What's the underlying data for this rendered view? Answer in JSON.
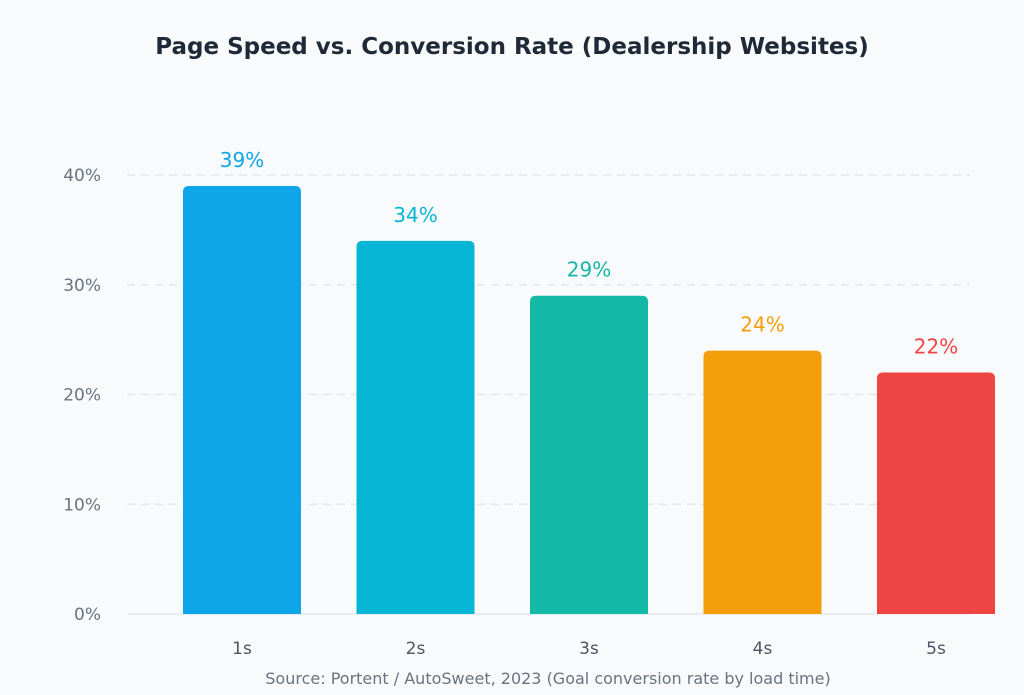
{
  "chart_data": {
    "type": "bar",
    "title": "Page Speed vs. Conversion Rate (Dealership Websites)",
    "xlabel": "",
    "ylabel": "",
    "categories": [
      "1s",
      "2s",
      "3s",
      "4s",
      "5s"
    ],
    "values": [
      39,
      34,
      29,
      24,
      22
    ],
    "data_labels": [
      "39%",
      "34%",
      "29%",
      "24%",
      "22%"
    ],
    "colors": [
      "#0ea5e9",
      "#06b6d4",
      "#14b8a6",
      "#f59e0b",
      "#ef4444"
    ],
    "ylim": [
      0,
      40
    ],
    "yticks": [
      0,
      10,
      20,
      30,
      40
    ],
    "ytick_labels": [
      "0%",
      "10%",
      "20%",
      "30%",
      "40%"
    ],
    "grid": true,
    "legend": "none",
    "source": "Source: Portent / AutoSweet, 2023 (Goal conversion rate by load time)"
  }
}
